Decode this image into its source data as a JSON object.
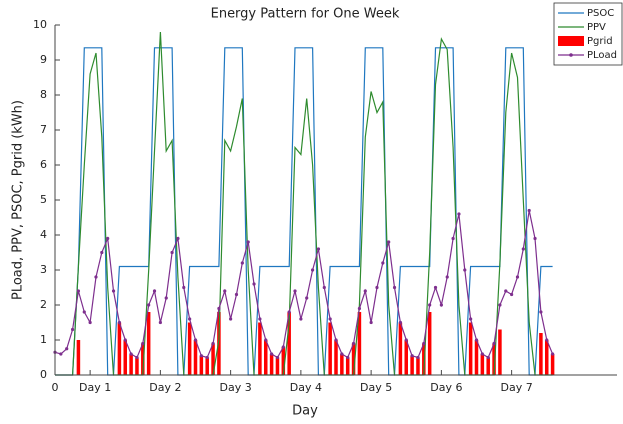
{
  "chart_data": {
    "type": "line",
    "title": "Energy Pattern for One Week",
    "x_label": "Day",
    "y_label": "PLoad, PPV, PSOC, Pgrid (kWh)",
    "x": [
      0,
      2,
      4,
      6,
      8,
      10,
      12,
      14,
      16,
      18,
      20,
      22,
      24,
      26,
      28,
      30,
      32,
      34,
      36,
      38,
      40,
      42,
      44,
      46,
      48,
      50,
      52,
      54,
      56,
      58,
      60,
      62,
      64,
      66,
      68,
      70,
      72,
      74,
      76,
      78,
      80,
      82,
      84,
      86,
      88,
      90,
      92,
      94,
      96,
      98,
      100,
      102,
      104,
      106,
      108,
      110,
      112,
      114,
      116,
      118,
      120,
      122,
      124,
      126,
      128,
      130,
      132,
      134,
      136,
      138,
      140,
      142,
      144,
      146,
      148,
      150,
      152,
      154,
      156,
      158,
      160,
      162,
      164,
      166,
      168,
      170
    ],
    "xlim": [
      0,
      192
    ],
    "xticks": [
      0,
      {
        "value": 12,
        "label": "Day 1"
      },
      {
        "value": 36,
        "label": "Day 2"
      },
      {
        "value": 60,
        "label": "Day 3"
      },
      {
        "value": 84,
        "label": "Day 4"
      },
      {
        "value": 108,
        "label": "Day 5"
      },
      {
        "value": 132,
        "label": "Day 6"
      },
      {
        "value": 156,
        "label": "Day 7"
      }
    ],
    "ylim": [
      0,
      10
    ],
    "yticks": [
      0,
      1,
      2,
      3,
      4,
      5,
      6,
      7,
      8,
      9,
      10
    ],
    "legend": "upper right",
    "series": [
      {
        "name": "PSOC",
        "color": "#1f77c0",
        "style": "line",
        "values": [
          0,
          0,
          0,
          0,
          3.1,
          9.35,
          9.35,
          9.35,
          9.35,
          0,
          0,
          3.1,
          3.1,
          3.1,
          3.1,
          3.1,
          3.1,
          9.35,
          9.35,
          9.35,
          9.35,
          0,
          0,
          3.1,
          3.1,
          3.1,
          3.1,
          3.1,
          3.1,
          9.35,
          9.35,
          9.35,
          9.35,
          0,
          0,
          3.1,
          3.1,
          3.1,
          3.1,
          3.1,
          3.1,
          9.35,
          9.35,
          9.35,
          9.35,
          0,
          0,
          3.1,
          3.1,
          3.1,
          3.1,
          3.1,
          3.1,
          9.35,
          9.35,
          9.35,
          9.35,
          0,
          0,
          3.1,
          3.1,
          3.1,
          3.1,
          3.1,
          3.1,
          9.35,
          9.35,
          9.35,
          9.35,
          0,
          0,
          3.1,
          3.1,
          3.1,
          3.1,
          3.1,
          3.1,
          9.35,
          9.35,
          9.35,
          9.35,
          0,
          0,
          3.1,
          3.1,
          3.1
        ]
      },
      {
        "name": "PPV",
        "color": "#2e8b2e",
        "style": "line",
        "values": [
          0,
          0,
          0,
          0,
          3.1,
          6.0,
          8.6,
          9.2,
          6.8,
          2.5,
          0,
          0,
          0,
          0,
          0,
          0,
          3.0,
          6.4,
          9.8,
          6.4,
          6.7,
          2.8,
          0,
          0,
          0,
          0,
          0,
          0,
          1.0,
          6.7,
          6.4,
          7.1,
          7.9,
          3.0,
          0,
          0,
          0,
          0,
          0,
          0,
          1.5,
          6.5,
          6.3,
          7.9,
          6.0,
          2.5,
          0,
          0,
          0,
          0,
          0,
          0,
          2.0,
          6.8,
          8.1,
          7.5,
          7.8,
          2.0,
          0,
          0,
          0,
          0,
          0,
          0,
          3.5,
          8.3,
          9.6,
          9.3,
          6.5,
          2.0,
          0,
          0,
          0,
          0,
          0,
          0,
          3.2,
          7.5,
          9.2,
          8.5,
          5.0,
          1.5,
          0,
          0,
          0,
          0
        ]
      },
      {
        "name": "Pgrid",
        "color": "#ff0000",
        "style": "bar",
        "values": [
          0,
          0,
          0,
          0,
          1.0,
          0,
          0,
          0,
          0,
          0,
          0,
          1.5,
          1.0,
          0.6,
          0.5,
          0.9,
          1.8,
          0,
          0,
          0,
          0,
          0,
          0,
          1.5,
          1.0,
          0.55,
          0.5,
          0.9,
          1.8,
          0,
          0,
          0,
          0,
          0,
          0,
          1.5,
          1.0,
          0.6,
          0.5,
          0.8,
          1.8,
          0,
          0,
          0,
          0,
          0,
          0,
          1.5,
          1.0,
          0.6,
          0.5,
          0.9,
          1.8,
          0,
          0,
          0,
          0,
          0,
          0,
          1.5,
          1.0,
          0.55,
          0.5,
          0.9,
          1.8,
          0,
          0,
          0,
          0,
          0,
          0,
          1.5,
          1.0,
          0.6,
          0.5,
          0.9,
          1.3,
          0,
          0,
          0,
          0,
          0,
          0,
          1.2,
          1.0,
          0.6
        ]
      },
      {
        "name": "PLoad",
        "color": "#7e2f8e",
        "style": "line",
        "marker": true,
        "values": [
          0.65,
          0.6,
          0.75,
          1.3,
          2.4,
          1.8,
          1.5,
          2.8,
          3.5,
          3.9,
          2.4,
          1.5,
          1.0,
          0.6,
          0.5,
          0.9,
          2.0,
          2.4,
          1.5,
          2.2,
          3.5,
          3.9,
          2.5,
          1.6,
          1.0,
          0.55,
          0.5,
          0.9,
          1.9,
          2.4,
          1.6,
          2.3,
          3.2,
          3.8,
          2.6,
          1.6,
          1.0,
          0.6,
          0.5,
          0.8,
          1.8,
          2.4,
          1.6,
          2.2,
          3.0,
          3.6,
          2.5,
          1.6,
          1.0,
          0.6,
          0.5,
          0.9,
          1.9,
          2.4,
          1.5,
          2.5,
          3.2,
          3.8,
          2.5,
          1.5,
          1.0,
          0.55,
          0.5,
          0.9,
          2.0,
          2.5,
          2.0,
          2.8,
          3.9,
          4.6,
          3.0,
          1.6,
          1.0,
          0.6,
          0.5,
          0.9,
          2.0,
          2.4,
          2.3,
          2.8,
          3.6,
          4.7,
          3.9,
          1.8,
          1.0,
          0.6
        ]
      }
    ]
  }
}
